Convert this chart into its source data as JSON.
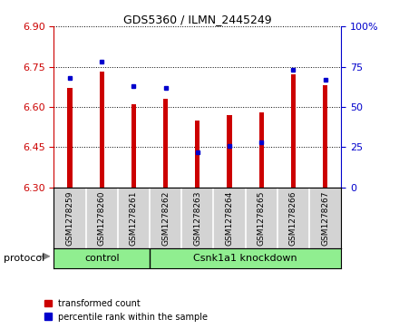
{
  "title": "GDS5360 / ILMN_2445249",
  "samples": [
    "GSM1278259",
    "GSM1278260",
    "GSM1278261",
    "GSM1278262",
    "GSM1278263",
    "GSM1278264",
    "GSM1278265",
    "GSM1278266",
    "GSM1278267"
  ],
  "red_values": [
    6.67,
    6.73,
    6.61,
    6.63,
    6.55,
    6.57,
    6.58,
    6.72,
    6.68
  ],
  "blue_values_pct": [
    68,
    78,
    63,
    62,
    22,
    26,
    28,
    73,
    67
  ],
  "ylim_left": [
    6.3,
    6.9
  ],
  "ylim_right": [
    0,
    100
  ],
  "yticks_left": [
    6.3,
    6.45,
    6.6,
    6.75,
    6.9
  ],
  "yticks_right": [
    0,
    25,
    50,
    75,
    100
  ],
  "bar_color": "#cc0000",
  "dot_color": "#0000cc",
  "background_color": "#ffffff",
  "plot_bg_color": "#ffffff",
  "n_control": 3,
  "n_knockdown": 6,
  "control_label": "control",
  "knockdown_label": "Csnk1a1 knockdown",
  "protocol_label": "protocol",
  "legend_red": "transformed count",
  "legend_blue": "percentile rank within the sample",
  "tick_color_left": "#cc0000",
  "tick_color_right": "#0000cc",
  "bar_width": 0.15,
  "base_value": 6.3,
  "gray_box_color": "#d3d3d3",
  "green_color": "#90ee90",
  "separator_color": "#808080"
}
